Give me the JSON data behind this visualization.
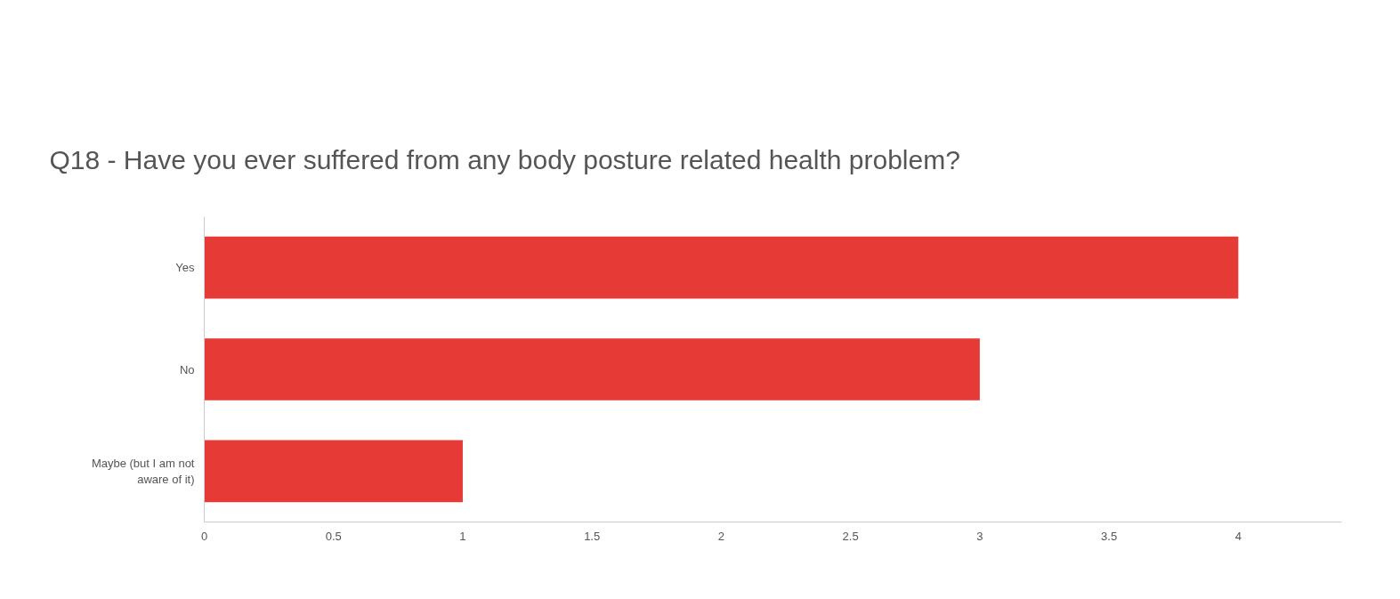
{
  "chart_data": {
    "type": "bar",
    "orientation": "horizontal",
    "title": "Q18 - Have you ever suffered from any body posture related health problem?",
    "categories": [
      "Yes",
      "No",
      "Maybe (but I am not aware of it)"
    ],
    "values": [
      4,
      3,
      1
    ],
    "color": "#e53a35",
    "xlim": [
      0,
      4.4
    ],
    "xticks": [
      0,
      0.5,
      1,
      1.5,
      2,
      2.5,
      3,
      3.5,
      4
    ],
    "grid": false
  }
}
